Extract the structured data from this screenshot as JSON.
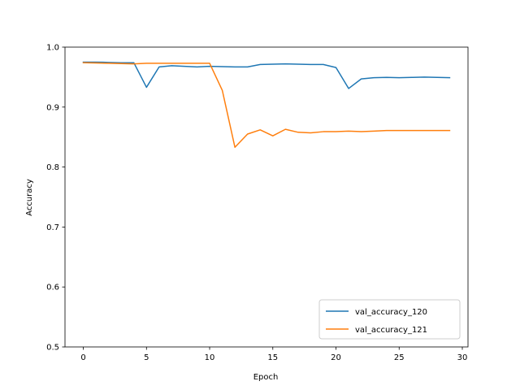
{
  "chart_data": {
    "type": "line",
    "title": "",
    "xlabel": "Epoch",
    "ylabel": "Accuracy",
    "xlim": [
      -1.45,
      30.45
    ],
    "ylim": [
      0.5,
      1.0
    ],
    "xticks": [
      0,
      5,
      10,
      15,
      20,
      25,
      30
    ],
    "yticks": [
      0.5,
      0.6,
      0.7,
      0.8,
      0.9,
      1.0
    ],
    "xtick_labels": [
      "0",
      "5",
      "10",
      "15",
      "20",
      "25",
      "30"
    ],
    "ytick_labels": [
      "0.5",
      "0.6",
      "0.7",
      "0.8",
      "0.9",
      "1.0"
    ],
    "grid": false,
    "legend_position": "bottom-right",
    "x": [
      0,
      1,
      2,
      3,
      4,
      5,
      6,
      7,
      8,
      9,
      10,
      11,
      12,
      13,
      14,
      15,
      16,
      17,
      18,
      19,
      20,
      21,
      22,
      23,
      24,
      25,
      26,
      27,
      28,
      29
    ],
    "series": [
      {
        "name": "val_accuracy_120",
        "color": "#1f77b4",
        "values": [
          0.975,
          0.975,
          0.9745,
          0.974,
          0.974,
          0.933,
          0.967,
          0.969,
          0.968,
          0.967,
          0.968,
          0.9675,
          0.967,
          0.967,
          0.971,
          0.9715,
          0.972,
          0.9715,
          0.971,
          0.971,
          0.966,
          0.931,
          0.947,
          0.949,
          0.9495,
          0.949,
          0.9495,
          0.95,
          0.9495,
          0.949
        ]
      },
      {
        "name": "val_accuracy_121",
        "color": "#ff7f0e",
        "values": [
          0.974,
          0.9735,
          0.973,
          0.9725,
          0.972,
          0.973,
          0.973,
          0.973,
          0.973,
          0.973,
          0.973,
          0.928,
          0.833,
          0.855,
          0.862,
          0.852,
          0.863,
          0.858,
          0.857,
          0.859,
          0.859,
          0.86,
          0.859,
          0.86,
          0.861,
          0.861,
          0.861,
          0.861,
          0.861,
          0.861
        ]
      }
    ]
  }
}
